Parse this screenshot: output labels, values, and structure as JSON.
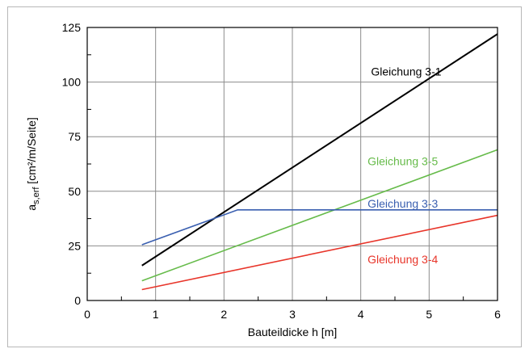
{
  "chart_data": {
    "type": "line",
    "xlabel": "Bauteildicke h [m]",
    "ylabel_main": "a",
    "ylabel_sub": "s,erf",
    "ylabel_unit": " [cm²/m/Seite]",
    "xlim": [
      0,
      6
    ],
    "ylim": [
      0,
      125
    ],
    "grid": true,
    "xticks": [
      0,
      1,
      2,
      3,
      4,
      5,
      6
    ],
    "xtick_labels": [
      "0",
      "1",
      "2",
      "3",
      "4",
      "5",
      "6"
    ],
    "yticks": [
      0,
      25,
      50,
      75,
      100,
      125
    ],
    "ytick_labels": [
      "0",
      "25",
      "50",
      "75",
      "100",
      "125"
    ],
    "series": [
      {
        "name": "Gleichung 3-1",
        "color": "#000000",
        "x": [
          0.8,
          6.0
        ],
        "y": [
          16,
          122
        ]
      },
      {
        "name": "Gleichung 3-5",
        "color": "#66bb4a",
        "x": [
          0.8,
          6.0
        ],
        "y": [
          9,
          69
        ]
      },
      {
        "name": "Gleichung 3-3",
        "color": "#3a5fb0",
        "x": [
          0.8,
          2.2,
          6.0
        ],
        "y": [
          25.5,
          41.5,
          41.5
        ]
      },
      {
        "name": "Gleichung 3-4",
        "color": "#e8352a",
        "x": [
          0.8,
          6.0
        ],
        "y": [
          5,
          39
        ]
      }
    ]
  }
}
